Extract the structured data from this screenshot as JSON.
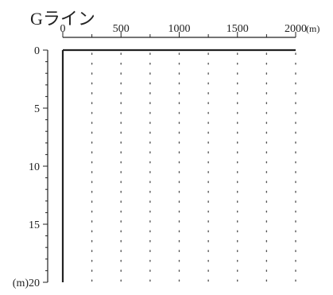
{
  "chart_data": {
    "type": "line",
    "title": "Gライン",
    "x_axis": {
      "position": "top",
      "range": [
        0,
        2000
      ],
      "ticks": [
        0,
        500,
        1000,
        1500,
        2000
      ],
      "tick_labels": [
        "0",
        "500",
        "1000",
        "1500",
        "2000"
      ],
      "minor_interval": 250,
      "unit_label": "(m)"
    },
    "y_axis": {
      "inverted": true,
      "range": [
        0,
        20
      ],
      "ticks": [
        0,
        5,
        10,
        15,
        20
      ],
      "tick_labels": [
        "0",
        "5",
        "10",
        "15",
        "(m)20"
      ]
    },
    "grid": {
      "vertical": "dotted",
      "horizontal": "none"
    },
    "series": [
      {
        "x": [
          0,
          2000
        ],
        "y": [
          0,
          0
        ]
      },
      {
        "x": [
          0,
          0
        ],
        "y": [
          0,
          20
        ]
      }
    ]
  },
  "colors": {
    "ink": "#222222",
    "grid": "#555555",
    "background": "#ffffff"
  }
}
